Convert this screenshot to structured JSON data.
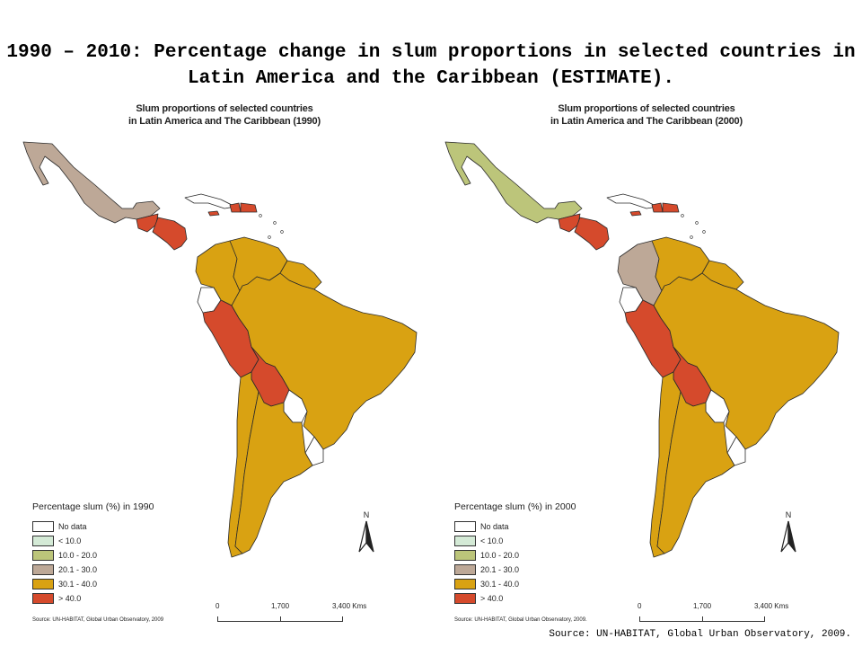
{
  "title": "1990 – 2010: Percentage change in slum proportions in selected countries in Latin America and the Caribbean (ESTIMATE).",
  "source": "Source: UN-HABITAT, Global Urban Observatory, 2009.",
  "colors": {
    "no_data": "#ffffff",
    "lt10": "#d4ead6",
    "c10_20": "#bcc57a",
    "c20_30": "#bda897",
    "c30_40": "#d9a212",
    "gt40": "#d54a2c",
    "border": "#2b2b2b"
  },
  "maps": [
    {
      "title_line1": "Slum proportions of selected countries",
      "title_line2": "in Latin America and The Caribbean (1990)",
      "legend_title": "Percentage slum (%) in 1990",
      "source": "Source: UN-HABITAT, Global Urban Observatory, 2009",
      "north": "N",
      "scale": [
        "0",
        "1,700",
        "3,400 Kms"
      ],
      "countries": {
        "mexico": "c20_30",
        "guatemala": "gt40",
        "central_america": "gt40",
        "cuba": "no_data",
        "haiti": "gt40",
        "dominican_republic": "gt40",
        "jamaica": "gt40",
        "colombia": "c30_40",
        "venezuela": "c30_40",
        "guianas": "c30_40",
        "ecuador": "no_data",
        "peru": "gt40",
        "brazil": "c30_40",
        "bolivia": "gt40",
        "paraguay": "no_data",
        "chile": "c30_40",
        "argentina": "c30_40",
        "uruguay": "no_data"
      }
    },
    {
      "title_line1": "Slum proportions of selected countries",
      "title_line2": "in Latin America and The Caribbean (2000)",
      "legend_title": "Percentage slum (%) in 2000",
      "source": "Source: UN-HABITAT, Global Urban Observatory, 2009.",
      "north": "N",
      "scale": [
        "0",
        "1,700",
        "3,400 Kms"
      ],
      "countries": {
        "mexico": "c10_20",
        "guatemala": "gt40",
        "central_america": "gt40",
        "cuba": "no_data",
        "haiti": "gt40",
        "dominican_republic": "gt40",
        "jamaica": "gt40",
        "colombia": "c20_30",
        "venezuela": "c30_40",
        "guianas": "c30_40",
        "ecuador": "no_data",
        "peru": "gt40",
        "brazil": "c30_40",
        "bolivia": "gt40",
        "paraguay": "no_data",
        "chile": "c30_40",
        "argentina": "c30_40",
        "uruguay": "no_data"
      }
    }
  ],
  "legend": [
    {
      "key": "no_data",
      "label": "No data"
    },
    {
      "key": "lt10",
      "label": "< 10.0"
    },
    {
      "key": "c10_20",
      "label": "10.0 - 20.0"
    },
    {
      "key": "c20_30",
      "label": "20.1 - 30.0"
    },
    {
      "key": "c30_40",
      "label": "30.1 - 40.0"
    },
    {
      "key": "gt40",
      "label": "> 40.0"
    }
  ]
}
